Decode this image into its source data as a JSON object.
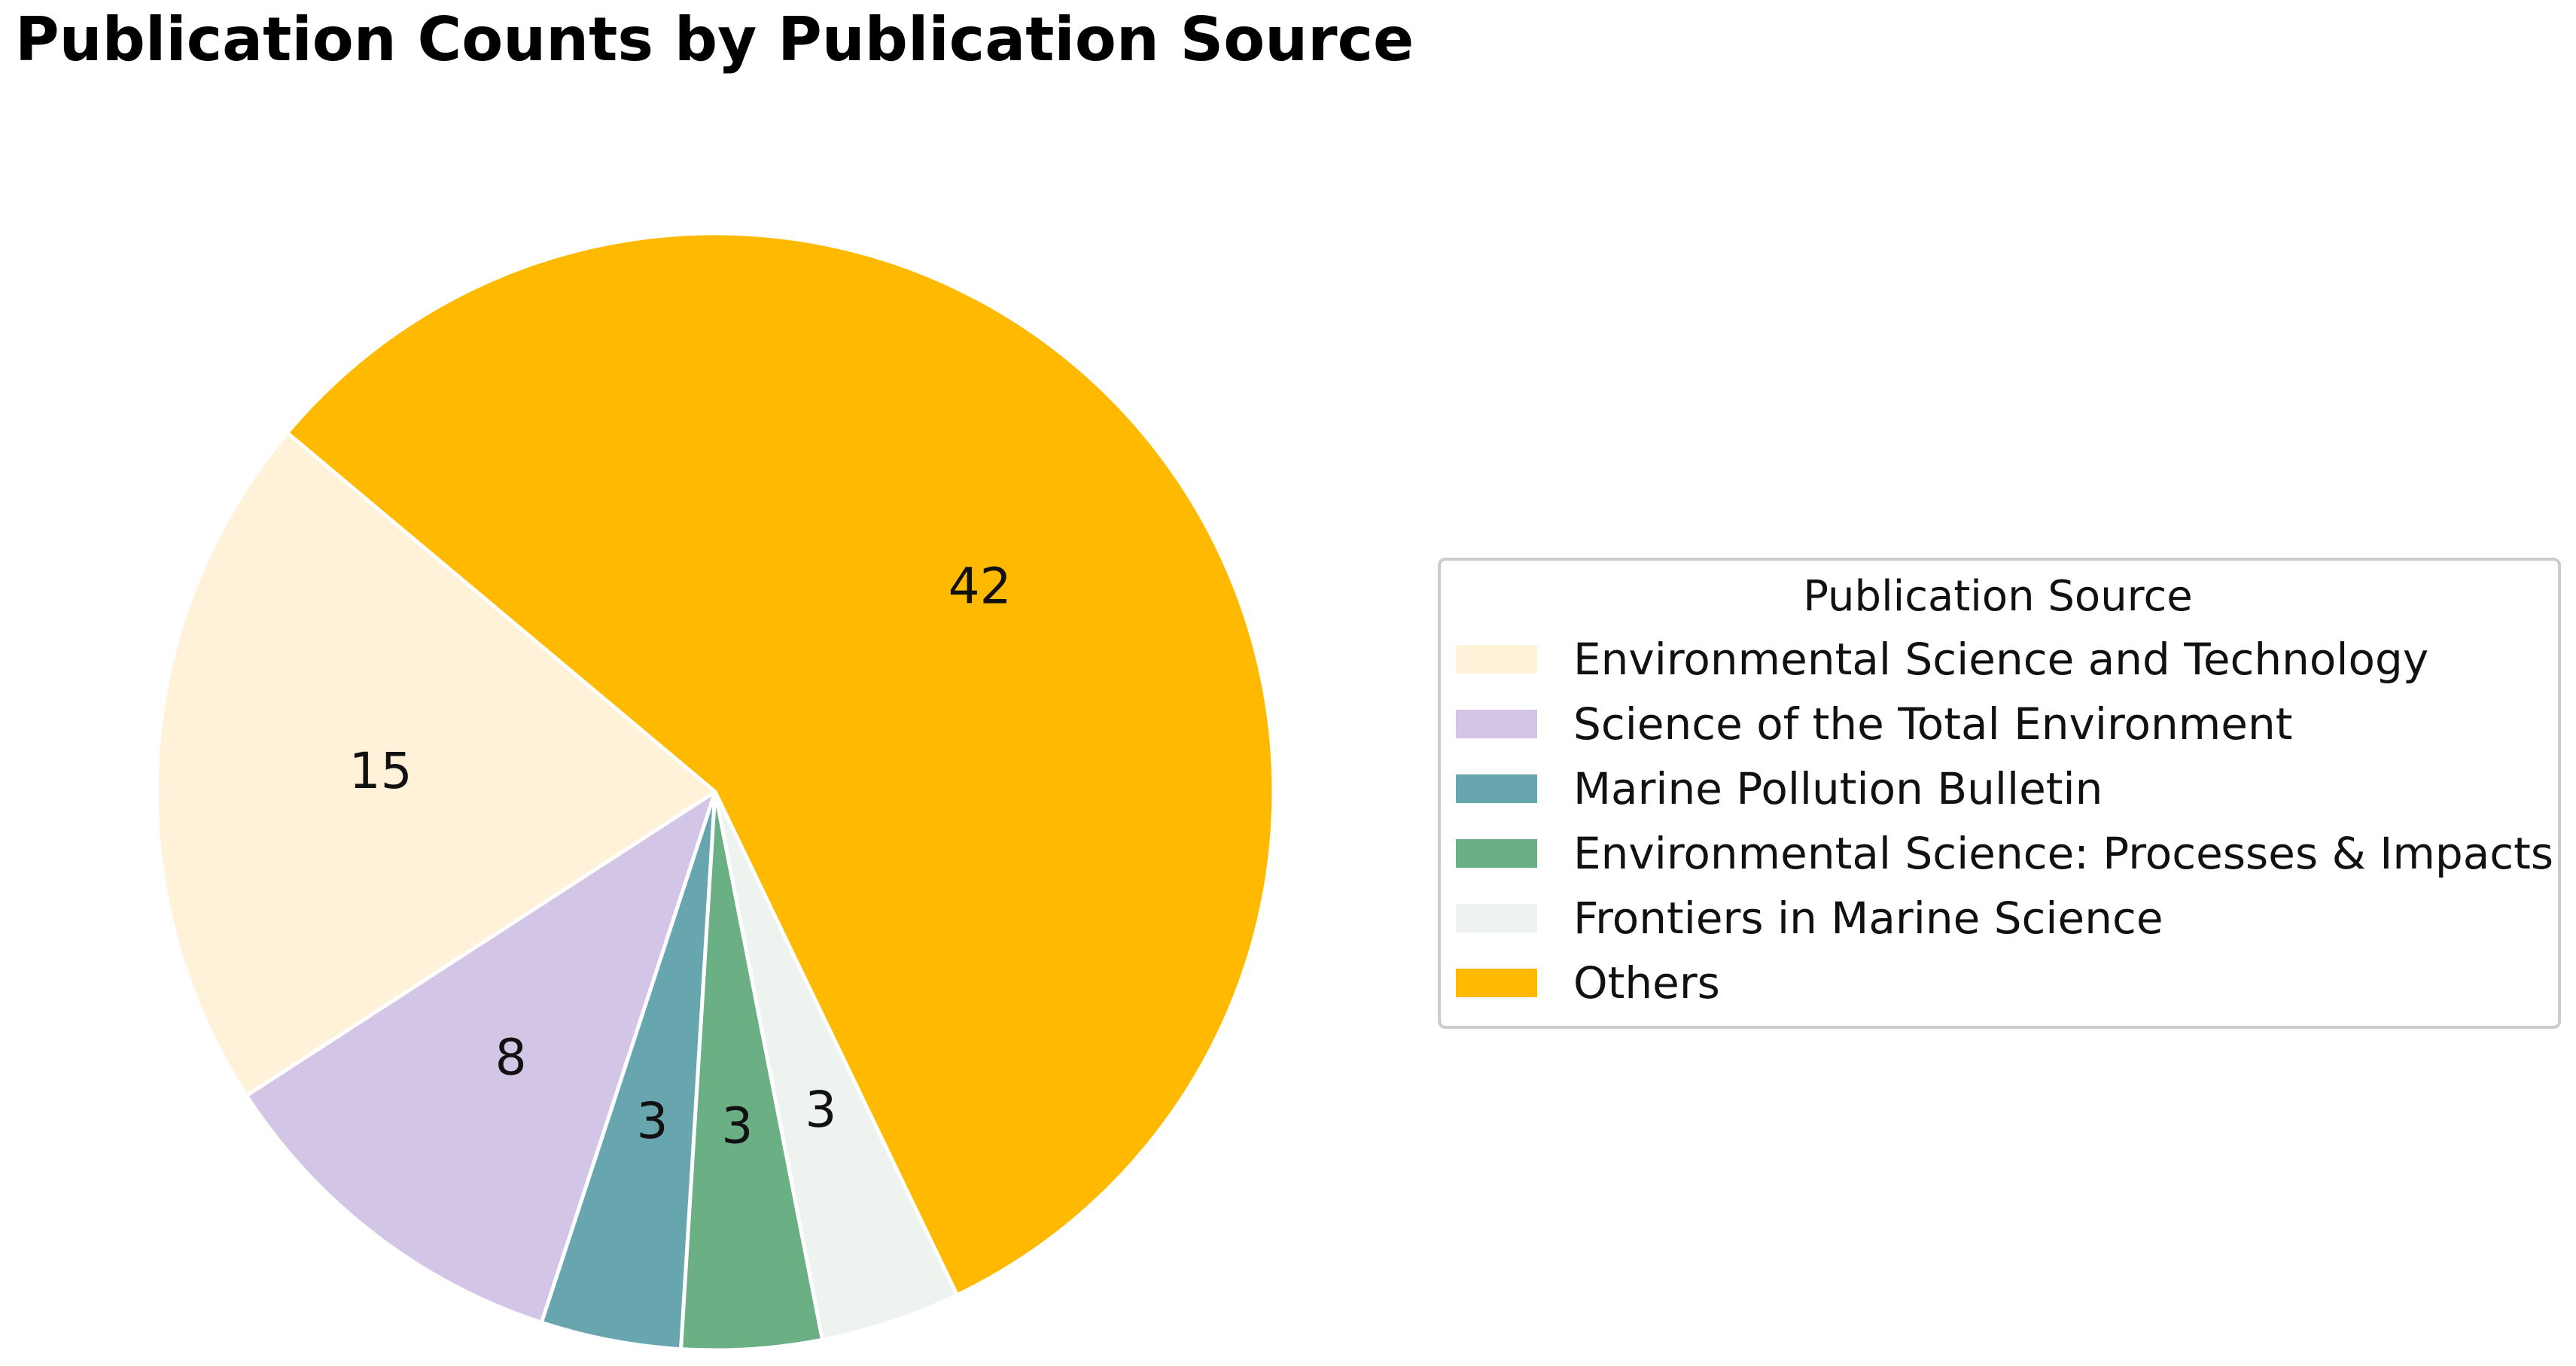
{
  "chart_data": {
    "type": "pie",
    "title": "Publication Counts by Publication Source",
    "legend": {
      "title": "Publication Source",
      "placement": "right"
    },
    "start_angle_deg": 140,
    "direction": "counterclockwise",
    "slices": [
      {
        "label": "Environmental Science and Technology",
        "value": 15,
        "color": "#FFF2D9"
      },
      {
        "label": "Science of the Total Environment",
        "value": 8,
        "color": "#D3C5E5"
      },
      {
        "label": "Marine Pollution Bulletin",
        "value": 3,
        "color": "#67A5AF"
      },
      {
        "label": "Environmental Science: Processes & Impacts",
        "value": 3,
        "color": "#6BAF85"
      },
      {
        "label": "Frontiers in Marine Science",
        "value": 3,
        "color": "#EEF3EF"
      },
      {
        "label": "Others",
        "value": 42,
        "color": "#FFBA00"
      }
    ]
  }
}
